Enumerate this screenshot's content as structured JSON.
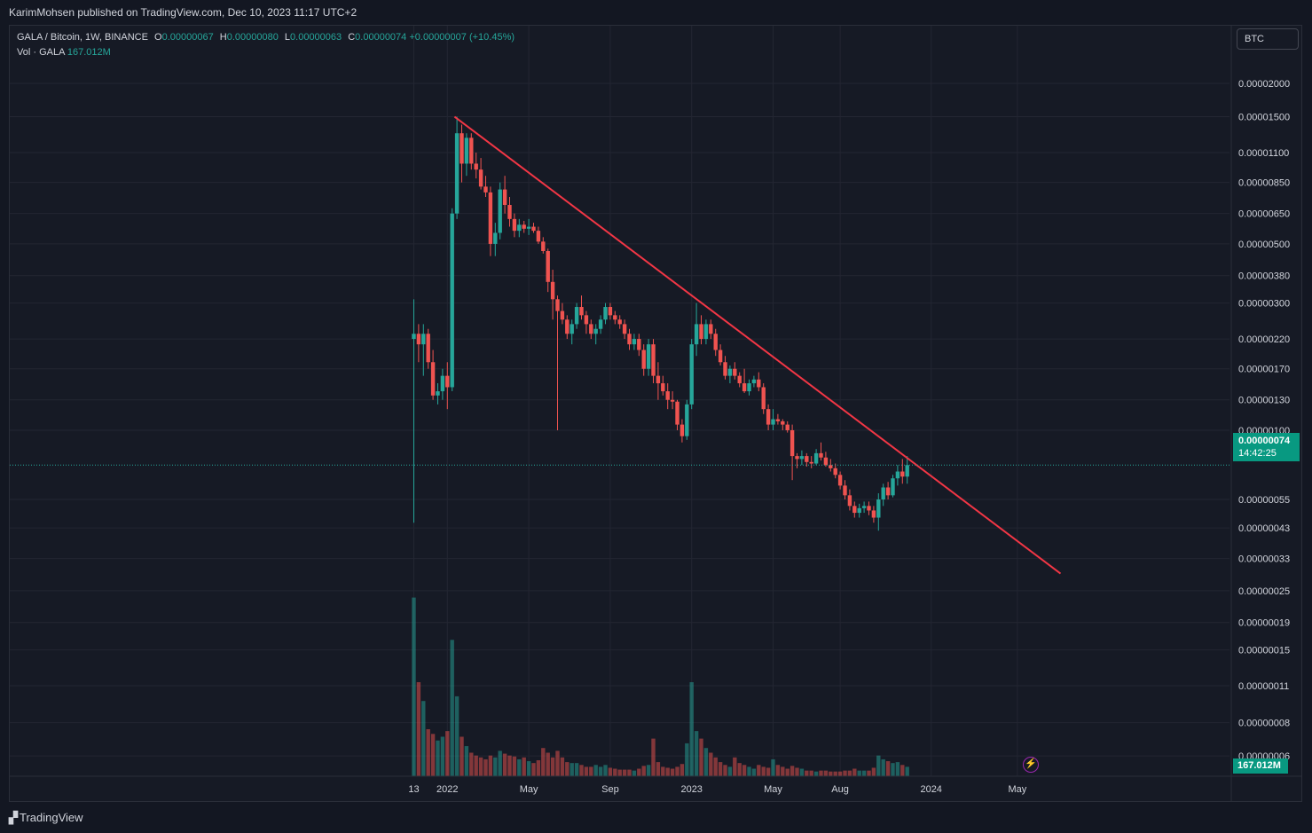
{
  "header": {
    "publisher": "KarimMohsen published on TradingView.com, Dec 10, 2023 11:17 UTC+2"
  },
  "legend": {
    "title": "GALA / Bitcoin, 1W, BINANCE",
    "o_label": "O",
    "o": "0.00000067",
    "h_label": "H",
    "h": "0.00000080",
    "l_label": "L",
    "l": "0.00000063",
    "c_label": "C",
    "c": "0.00000074",
    "change": "+0.00000007 (+10.45%)",
    "vol_label": "Vol · GALA",
    "vol": "167.012M"
  },
  "currency_button": "BTC",
  "price_badge": {
    "price": "0.00000074",
    "countdown": "14:42:25"
  },
  "volume_badge": "167.012M",
  "footer": {
    "brand": "TradingView"
  },
  "colors": {
    "up": "#26a69a",
    "down": "#ef5350",
    "trendline": "#f23645",
    "background": "#161a25"
  },
  "chart_data": {
    "type": "candlestick",
    "symbol": "GALA / Bitcoin",
    "interval": "1W",
    "exchange": "BINANCE",
    "y_scale": "log",
    "y_ticks": [
      "0.00002000",
      "0.00001500",
      "0.00001100",
      "0.00000850",
      "0.00000650",
      "0.00000500",
      "0.00000380",
      "0.00000300",
      "0.00000220",
      "0.00000170",
      "0.00000130",
      "0.00000100",
      "0.00000055",
      "0.00000043",
      "0.00000033",
      "0.00000025",
      "0.00000019",
      "0.00000015",
      "0.00000011",
      "0.00000008",
      "0.00000006"
    ],
    "x_ticks": [
      {
        "label": "13",
        "week": 0
      },
      {
        "label": "2022",
        "week": 7
      },
      {
        "label": "May",
        "week": 24
      },
      {
        "label": "Sep",
        "week": 41
      },
      {
        "label": "2023",
        "week": 58
      },
      {
        "label": "May",
        "week": 75
      },
      {
        "label": "Aug",
        "week": 89
      },
      {
        "label": "2024",
        "week": 108
      },
      {
        "label": "May",
        "week": 126
      }
    ],
    "candles": [
      [
        2.2e-06,
        3.1e-06,
        4.5e-07,
        2.3e-06,
        1.9
      ],
      [
        2.3e-06,
        2.5e-06,
        1.8e-06,
        2.1e-06,
        1.0
      ],
      [
        2.1e-06,
        2.5e-06,
        1.6e-06,
        2.3e-06,
        0.8
      ],
      [
        2.3e-06,
        2.4e-06,
        1.7e-06,
        1.8e-06,
        0.5
      ],
      [
        1.8e-06,
        2e-06,
        1.3e-06,
        1.35e-06,
        0.45
      ],
      [
        1.35e-06,
        1.5e-06,
        1.25e-06,
        1.4e-06,
        0.38
      ],
      [
        1.4e-06,
        1.7e-06,
        1.3e-06,
        1.6e-06,
        0.42
      ],
      [
        1.6e-06,
        1.8e-06,
        1.2e-06,
        1.45e-06,
        0.48
      ],
      [
        1.45e-06,
        6.8e-06,
        1.4e-06,
        6.5e-06,
        1.45
      ],
      [
        6.5e-06,
        1.5e-05,
        6.2e-06,
        1.3e-05,
        0.85
      ],
      [
        1.3e-05,
        1.4e-05,
        8.5e-06,
        1e-05,
        0.42
      ],
      [
        1e-05,
        1.3e-05,
        9e-06,
        1.25e-05,
        0.32
      ],
      [
        1.25e-05,
        1.3e-05,
        9.5e-06,
        1e-05,
        0.25
      ],
      [
        1e-05,
        1.1e-05,
        8.8e-06,
        9.5e-06,
        0.22
      ],
      [
        9.5e-06,
        1.05e-05,
        8e-06,
        8.2e-06,
        0.2
      ],
      [
        8.2e-06,
        9e-06,
        7.5e-06,
        7.8e-06,
        0.18
      ],
      [
        7.8e-06,
        8.2e-06,
        4.5e-06,
        5e-06,
        0.22
      ],
      [
        5e-06,
        6e-06,
        4.5e-06,
        5.5e-06,
        0.2
      ],
      [
        5.5e-06,
        8.5e-06,
        5.2e-06,
        8e-06,
        0.27
      ],
      [
        8e-06,
        9e-06,
        6.5e-06,
        7e-06,
        0.24
      ],
      [
        7e-06,
        7.5e-06,
        5.8e-06,
        6.2e-06,
        0.22
      ],
      [
        6.2e-06,
        6.5e-06,
        5.3e-06,
        5.6e-06,
        0.21
      ],
      [
        5.6e-06,
        6.2e-06,
        5.3e-06,
        5.9e-06,
        0.18
      ],
      [
        5.9e-06,
        6.1e-06,
        5.5e-06,
        5.7e-06,
        0.2
      ],
      [
        5.7e-06,
        6.2e-06,
        5.4e-06,
        5.8e-06,
        0.16
      ],
      [
        5.8e-06,
        6e-06,
        5.5e-06,
        5.6e-06,
        0.14
      ],
      [
        5.6e-06,
        5.8e-06,
        5e-06,
        5.1e-06,
        0.17
      ],
      [
        5.1e-06,
        5.3e-06,
        4.6e-06,
        4.7e-06,
        0.3
      ],
      [
        4.7e-06,
        4.8e-06,
        3.3e-06,
        3.6e-06,
        0.25
      ],
      [
        3.6e-06,
        4e-06,
        2.6e-06,
        3.1e-06,
        0.2
      ],
      [
        3.1e-06,
        3.2e-06,
        1e-06,
        2.8e-06,
        0.27
      ],
      [
        2.8e-06,
        3e-06,
        2.5e-06,
        2.6e-06,
        0.2
      ],
      [
        2.6e-06,
        2.7e-06,
        2.2e-06,
        2.3e-06,
        0.15
      ],
      [
        2.3e-06,
        2.6e-06,
        2.1e-06,
        2.5e-06,
        0.14
      ],
      [
        2.5e-06,
        3e-06,
        2.4e-06,
        2.9e-06,
        0.14
      ],
      [
        2.9e-06,
        3.2e-06,
        2.6e-06,
        2.7e-06,
        0.12
      ],
      [
        2.7e-06,
        2.8e-06,
        2.3e-06,
        2.5e-06,
        0.1
      ],
      [
        2.5e-06,
        2.6e-06,
        2.2e-06,
        2.3e-06,
        0.1
      ],
      [
        2.3e-06,
        2.5e-06,
        2.1e-06,
        2.4e-06,
        0.12
      ],
      [
        2.4e-06,
        2.7e-06,
        2.3e-06,
        2.6e-06,
        0.1
      ],
      [
        2.6e-06,
        3e-06,
        2.5e-06,
        2.9e-06,
        0.12
      ],
      [
        2.9e-06,
        3e-06,
        2.6e-06,
        2.7e-06,
        0.09
      ],
      [
        2.7e-06,
        2.8e-06,
        2.5e-06,
        2.6e-06,
        0.08
      ],
      [
        2.6e-06,
        2.7e-06,
        2.4e-06,
        2.5e-06,
        0.07
      ],
      [
        2.5e-06,
        2.6e-06,
        2.2e-06,
        2.3e-06,
        0.07
      ],
      [
        2.3e-06,
        2.4e-06,
        2e-06,
        2.1e-06,
        0.07
      ],
      [
        2.1e-06,
        2.3e-06,
        2e-06,
        2.2e-06,
        0.06
      ],
      [
        2.2e-06,
        2.3e-06,
        1.9e-06,
        2e-06,
        0.08
      ],
      [
        2e-06,
        2.1e-06,
        1.6e-06,
        1.7e-06,
        0.11
      ],
      [
        1.7e-06,
        2.2e-06,
        1.6e-06,
        2.1e-06,
        0.12
      ],
      [
        2.1e-06,
        2.2e-06,
        1.5e-06,
        1.6e-06,
        0.4
      ],
      [
        1.6e-06,
        1.8e-06,
        1.3e-06,
        1.5e-06,
        0.15
      ],
      [
        1.5e-06,
        1.6e-06,
        1.35e-06,
        1.4e-06,
        0.1
      ],
      [
        1.4e-06,
        1.5e-06,
        1.2e-06,
        1.3e-06,
        0.09
      ],
      [
        1.3e-06,
        1.4e-06,
        1.2e-06,
        1.28e-06,
        0.08
      ],
      [
        1.28e-06,
        1.3e-06,
        1e-06,
        1.05e-06,
        0.1
      ],
      [
        1.05e-06,
        1.1e-06,
        9e-07,
        9.5e-07,
        0.13
      ],
      [
        9.5e-07,
        1.3e-06,
        9.2e-07,
        1.25e-06,
        0.35
      ],
      [
        1.25e-06,
        2.2e-06,
        1.2e-06,
        2.1e-06,
        1.0
      ],
      [
        2.1e-06,
        3e-06,
        1.9e-06,
        2.5e-06,
        0.48
      ],
      [
        2.5e-06,
        2.7e-06,
        2.1e-06,
        2.2e-06,
        0.4
      ],
      [
        2.2e-06,
        2.6e-06,
        2.1e-06,
        2.5e-06,
        0.3
      ],
      [
        2.5e-06,
        2.6e-06,
        2.2e-06,
        2.3e-06,
        0.25
      ],
      [
        2.3e-06,
        2.4e-06,
        1.9e-06,
        2e-06,
        0.2
      ],
      [
        2e-06,
        2.1e-06,
        1.75e-06,
        1.8e-06,
        0.15
      ],
      [
        1.8e-06,
        1.9e-06,
        1.55e-06,
        1.6e-06,
        0.12
      ],
      [
        1.6e-06,
        1.75e-06,
        1.5e-06,
        1.7e-06,
        0.1
      ],
      [
        1.7e-06,
        1.8e-06,
        1.55e-06,
        1.6e-06,
        0.2
      ],
      [
        1.6e-06,
        1.65e-06,
        1.45e-06,
        1.5e-06,
        0.14
      ],
      [
        1.5e-06,
        1.7e-06,
        1.38e-06,
        1.4e-06,
        0.12
      ],
      [
        1.4e-06,
        1.55e-06,
        1.35e-06,
        1.5e-06,
        0.1
      ],
      [
        1.5e-06,
        1.6e-06,
        1.45e-06,
        1.55e-06,
        0.08
      ],
      [
        1.55e-06,
        1.65e-06,
        1.4e-06,
        1.45e-06,
        0.12
      ],
      [
        1.45e-06,
        1.5e-06,
        1.15e-06,
        1.2e-06,
        0.1
      ],
      [
        1.2e-06,
        1.25e-06,
        1e-06,
        1.05e-06,
        0.09
      ],
      [
        1.05e-06,
        1.2e-06,
        1e-06,
        1.1e-06,
        0.18
      ],
      [
        1.1e-06,
        1.15e-06,
        1.05e-06,
        1.08e-06,
        0.12
      ],
      [
        1.08e-06,
        1.1e-06,
        1e-06,
        1.05e-06,
        0.1
      ],
      [
        1.05e-06,
        1.08e-06,
        9.8e-07,
        1e-06,
        0.08
      ],
      [
        1e-06,
        1.05e-06,
        6.5e-07,
        8e-07,
        0.11
      ],
      [
        8e-07,
        8.2e-07,
        7.2e-07,
        7.8e-07,
        0.09
      ],
      [
        7.8e-07,
        8.4e-07,
        7.4e-07,
        8e-07,
        0.08
      ],
      [
        8e-07,
        8.2e-07,
        7.3e-07,
        7.6e-07,
        0.06
      ],
      [
        7.6e-07,
        8e-07,
        7.2e-07,
        7.5e-07,
        0.06
      ],
      [
        7.5e-07,
        8.5e-07,
        7.4e-07,
        8.2e-07,
        0.05
      ],
      [
        8.2e-07,
        9e-07,
        7.7e-07,
        7.9e-07,
        0.06
      ],
      [
        7.9e-07,
        8.3e-07,
        7.3e-07,
        7.4e-07,
        0.06
      ],
      [
        7.4e-07,
        7.8e-07,
        7e-07,
        7.2e-07,
        0.05
      ],
      [
        7.2e-07,
        7.5e-07,
        6.6e-07,
        6.8e-07,
        0.05
      ],
      [
        6.8e-07,
        7e-07,
        6e-07,
        6.2e-07,
        0.05
      ],
      [
        6.2e-07,
        6.5e-07,
        5.5e-07,
        5.7e-07,
        0.06
      ],
      [
        5.7e-07,
        6e-07,
        5e-07,
        5.2e-07,
        0.06
      ],
      [
        5.2e-07,
        5.4e-07,
        4.7e-07,
        4.9e-07,
        0.08
      ],
      [
        4.9e-07,
        5.3e-07,
        4.7e-07,
        5.1e-07,
        0.06
      ],
      [
        5.1e-07,
        5.4e-07,
        4.9e-07,
        5.2e-07,
        0.06
      ],
      [
        5.2e-07,
        5.4e-07,
        4.8e-07,
        5e-07,
        0.06
      ],
      [
        5e-07,
        5.2e-07,
        4.5e-07,
        4.7e-07,
        0.09
      ],
      [
        4.7e-07,
        5.8e-07,
        4.2e-07,
        5.5e-07,
        0.22
      ],
      [
        5.5e-07,
        6.3e-07,
        5.2e-07,
        6.1e-07,
        0.18
      ],
      [
        6.1e-07,
        6.4e-07,
        5.5e-07,
        5.7e-07,
        0.16
      ],
      [
        5.7e-07,
        6.8e-07,
        5.6e-07,
        6.6e-07,
        0.14
      ],
      [
        6.6e-07,
        7.4e-07,
        6.2e-07,
        7e-07,
        0.15
      ],
      [
        7e-07,
        7.8e-07,
        6.3e-07,
        6.7e-07,
        0.12
      ],
      [
        6.7e-07,
        8e-07,
        6.3e-07,
        7.4e-07,
        0.1
      ]
    ],
    "volume_max_ref": 2.0,
    "trendline": {
      "start": {
        "week": 8.5,
        "price": 1.5e-05
      },
      "end": {
        "week": 135,
        "price": 2.9e-07
      }
    },
    "last_price": 7.4e-07
  }
}
